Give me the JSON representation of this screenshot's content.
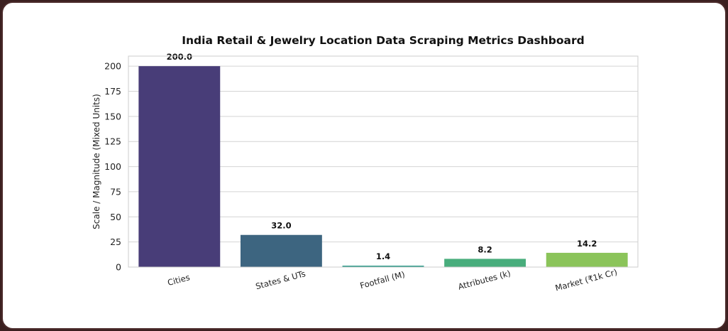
{
  "chart_data": {
    "type": "bar",
    "title": "India Retail & Jewelry Location Data Scraping Metrics Dashboard",
    "xlabel": "",
    "ylabel": "Scale / Magnitude (Mixed Units)",
    "categories": [
      "Cities",
      "States & UTs",
      "Footfall (M)",
      "Attributes (k)",
      "Market (₹1k Cr)"
    ],
    "values": [
      200.0,
      32.0,
      1.4,
      8.2,
      14.2
    ],
    "value_labels": [
      "200.0",
      "32.0",
      "1.4",
      "8.2",
      "14.2"
    ],
    "colors": [
      "#483d78",
      "#3d6580",
      "#2e9b8a",
      "#48ad7c",
      "#8bc45a"
    ],
    "ylim": [
      0,
      210
    ],
    "yticks": [
      0,
      25,
      50,
      75,
      100,
      125,
      150,
      175,
      200
    ],
    "grid": true,
    "legend": "none"
  }
}
